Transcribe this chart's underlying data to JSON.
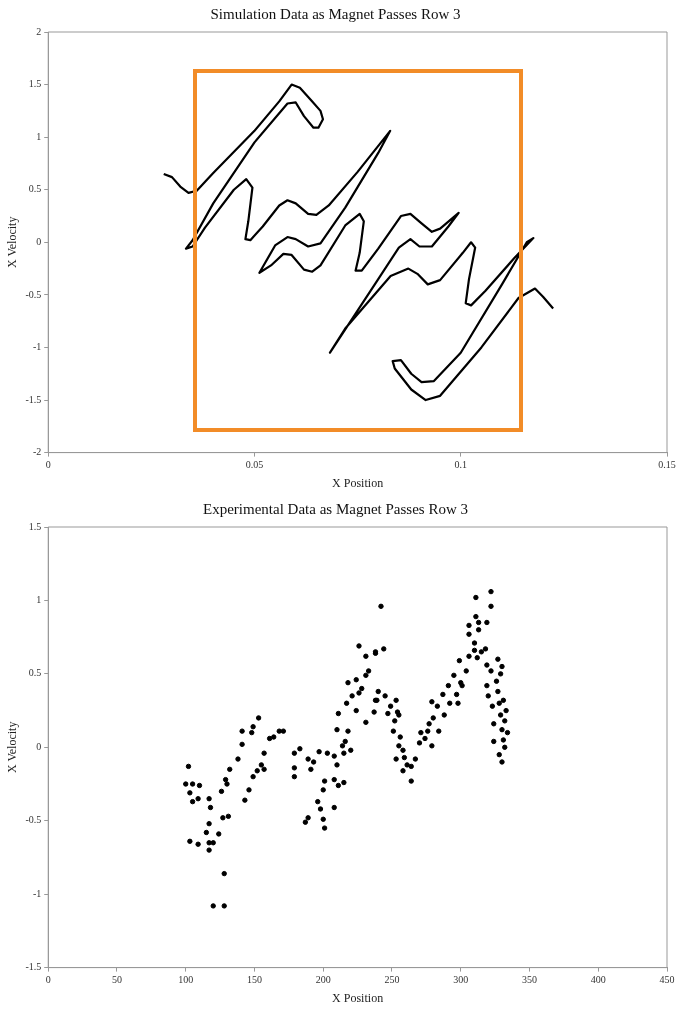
{
  "chart_data": [
    {
      "type": "line",
      "title": "Simulation Data as Magnet Passes Row 3",
      "xlabel": "X Position",
      "ylabel": "X Velocity",
      "color": "#000000",
      "marker": "none",
      "line_style": "solid",
      "xlim": [
        0,
        0.15
      ],
      "ylim": [
        -2,
        2
      ],
      "xticks": [
        0,
        0.05,
        0.1,
        0.15
      ],
      "yticks": [
        -2,
        -1.5,
        -1,
        -0.5,
        0,
        0.5,
        1,
        1.5,
        2
      ],
      "x": [
        0.028,
        0.03,
        0.032,
        0.034,
        0.036,
        0.04,
        0.05,
        0.056,
        0.059,
        0.061,
        0.064,
        0.066,
        0.0666,
        0.0655,
        0.0643,
        0.062,
        0.06,
        0.058,
        0.05,
        0.04,
        0.035,
        0.0334,
        0.035,
        0.038,
        0.045,
        0.048,
        0.0495,
        0.0485,
        0.0478,
        0.049,
        0.052,
        0.056,
        0.058,
        0.06,
        0.063,
        0.065,
        0.068,
        0.075,
        0.0829,
        0.08,
        0.072,
        0.066,
        0.063,
        0.06,
        0.058,
        0.055,
        0.0512,
        0.054,
        0.057,
        0.059,
        0.062,
        0.064,
        0.066,
        0.072,
        0.0755,
        0.0765,
        0.0755,
        0.0745,
        0.076,
        0.08,
        0.0855,
        0.0878,
        0.0905,
        0.093,
        0.095,
        0.0995,
        0.097,
        0.093,
        0.09,
        0.0878,
        0.085,
        0.08,
        0.0683,
        0.072,
        0.083,
        0.0873,
        0.0895,
        0.092,
        0.095,
        0.1005,
        0.1025,
        0.1035,
        0.102,
        0.1012,
        0.1025,
        0.106,
        0.113,
        0.1176,
        0.116,
        0.11,
        0.1,
        0.0935,
        0.0905,
        0.088,
        0.0855,
        0.0835,
        0.084,
        0.088,
        0.0915,
        0.095,
        0.105,
        0.114,
        0.118,
        0.12,
        0.1224
      ],
      "values": [
        0.65,
        0.62,
        0.53,
        0.47,
        0.49,
        0.66,
        1.06,
        1.34,
        1.5,
        1.47,
        1.34,
        1.25,
        1.17,
        1.09,
        1.09,
        1.2,
        1.33,
        1.32,
        0.95,
        0.37,
        0.02,
        -0.06,
        -0.04,
        0.14,
        0.5,
        0.6,
        0.52,
        0.2,
        0.03,
        0.02,
        0.15,
        0.35,
        0.4,
        0.37,
        0.27,
        0.26,
        0.35,
        0.67,
        1.06,
        0.85,
        0.33,
        -0.01,
        -0.04,
        0.03,
        0.05,
        -0.03,
        -0.29,
        -0.22,
        -0.11,
        -0.12,
        -0.26,
        -0.28,
        -0.22,
        0.16,
        0.27,
        0.2,
        -0.1,
        -0.27,
        -0.27,
        -0.06,
        0.25,
        0.27,
        0.18,
        0.1,
        0.13,
        0.28,
        0.15,
        -0.04,
        -0.04,
        0.03,
        -0.05,
        -0.35,
        -1.05,
        -0.82,
        -0.32,
        -0.25,
        -0.3,
        -0.4,
        -0.36,
        -0.1,
        0.0,
        -0.05,
        -0.35,
        -0.58,
        -0.6,
        -0.46,
        -0.15,
        0.04,
        0.0,
        -0.4,
        -1.05,
        -1.32,
        -1.33,
        -1.25,
        -1.12,
        -1.13,
        -1.2,
        -1.4,
        -1.5,
        -1.46,
        -1.0,
        -0.53,
        -0.44,
        -0.52,
        -0.63
      ]
    },
    {
      "type": "scatter",
      "title": "Experimental Data as Magnet Passes Row 3",
      "xlabel": "X Position",
      "ylabel": "X Velocity",
      "color": "#000000",
      "marker": "circle",
      "xlim": [
        0,
        450
      ],
      "ylim": [
        -1.5,
        1.5
      ],
      "xticks": [
        0,
        50,
        100,
        150,
        200,
        250,
        300,
        350,
        400,
        450
      ],
      "yticks": [
        -1.5,
        -1,
        -0.5,
        0,
        0.5,
        1,
        1.5
      ],
      "x": [
        102,
        100,
        105,
        110,
        103,
        105,
        109,
        103,
        109,
        117,
        118,
        117,
        115,
        117,
        120,
        117,
        128,
        120,
        128,
        124,
        127,
        131,
        126,
        129,
        130,
        132,
        138,
        141,
        141,
        143,
        146,
        148,
        149,
        153,
        149,
        152,
        155,
        157,
        157,
        161,
        164,
        168,
        171,
        179,
        179,
        179,
        183,
        187,
        189,
        189,
        191,
        193,
        197,
        196,
        198,
        200,
        201,
        200,
        201,
        203,
        208,
        208,
        210,
        211,
        215,
        208,
        215,
        220,
        216,
        210,
        211,
        218,
        217,
        218,
        221,
        224,
        226,
        228,
        231,
        233,
        231,
        226,
        238,
        231,
        237,
        239,
        224,
        214,
        242,
        244,
        238,
        240,
        238,
        245,
        253,
        249,
        247,
        254,
        252,
        255,
        251,
        256,
        255,
        258,
        253,
        259,
        261,
        264,
        258,
        264,
        267,
        270,
        274,
        271,
        276,
        279,
        277,
        280,
        283,
        284,
        279,
        288,
        287,
        291,
        292,
        298,
        297,
        295,
        300,
        299,
        301,
        304,
        306,
        306,
        306,
        311,
        311,
        313,
        313,
        310,
        312,
        315,
        318,
        319,
        322,
        322,
        319,
        322,
        319,
        320,
        323,
        324,
        324,
        310,
        326,
        327,
        328,
        329,
        330,
        331,
        328,
        330,
        332,
        333,
        331,
        334,
        329,
        332,
        327,
        330
      ],
      "values": [
        -0.13,
        -0.25,
        -0.25,
        -0.26,
        -0.31,
        -0.37,
        -0.35,
        -0.64,
        -0.66,
        -0.35,
        -0.41,
        -0.52,
        -0.58,
        -0.65,
        -0.65,
        -0.7,
        -0.86,
        -1.08,
        -1.08,
        -0.59,
        -0.48,
        -0.47,
        -0.3,
        -0.22,
        -0.25,
        -0.15,
        -0.08,
        0.02,
        0.11,
        -0.36,
        -0.29,
        0.1,
        0.14,
        0.2,
        -0.2,
        -0.16,
        -0.12,
        -0.15,
        -0.04,
        0.06,
        0.07,
        0.11,
        0.11,
        -0.14,
        -0.2,
        -0.04,
        -0.01,
        -0.51,
        -0.48,
        -0.08,
        -0.15,
        -0.1,
        -0.03,
        -0.37,
        -0.42,
        -0.49,
        -0.55,
        -0.29,
        -0.23,
        -0.04,
        -0.41,
        -0.22,
        -0.12,
        -0.26,
        -0.24,
        -0.06,
        -0.04,
        -0.02,
        0.04,
        0.12,
        0.23,
        0.11,
        0.3,
        0.44,
        0.35,
        0.25,
        0.37,
        0.4,
        0.49,
        0.52,
        0.62,
        0.69,
        0.64,
        0.17,
        0.24,
        0.32,
        0.46,
        0.01,
        0.96,
        0.67,
        0.65,
        0.38,
        0.32,
        0.35,
        0.32,
        0.28,
        0.23,
        0.24,
        0.18,
        0.22,
        0.11,
        0.07,
        0.01,
        -0.02,
        -0.08,
        -0.07,
        -0.12,
        -0.13,
        -0.16,
        -0.23,
        -0.08,
        0.03,
        0.06,
        0.1,
        0.11,
        0.01,
        0.16,
        0.2,
        0.28,
        0.11,
        0.31,
        0.22,
        0.36,
        0.42,
        0.3,
        0.3,
        0.36,
        0.49,
        0.44,
        0.59,
        0.42,
        0.52,
        0.62,
        0.77,
        0.83,
        1.02,
        0.89,
        0.85,
        0.8,
        0.66,
        0.61,
        0.65,
        0.67,
        0.85,
        1.06,
        0.96,
        0.56,
        0.52,
        0.42,
        0.35,
        0.28,
        0.16,
        0.04,
        0.71,
        0.45,
        0.38,
        0.3,
        0.22,
        0.12,
        0.05,
        -0.05,
        -0.1,
        0.18,
        0.25,
        0.32,
        0.1,
        0.5,
        0.0,
        0.6,
        0.55
      ]
    }
  ]
}
